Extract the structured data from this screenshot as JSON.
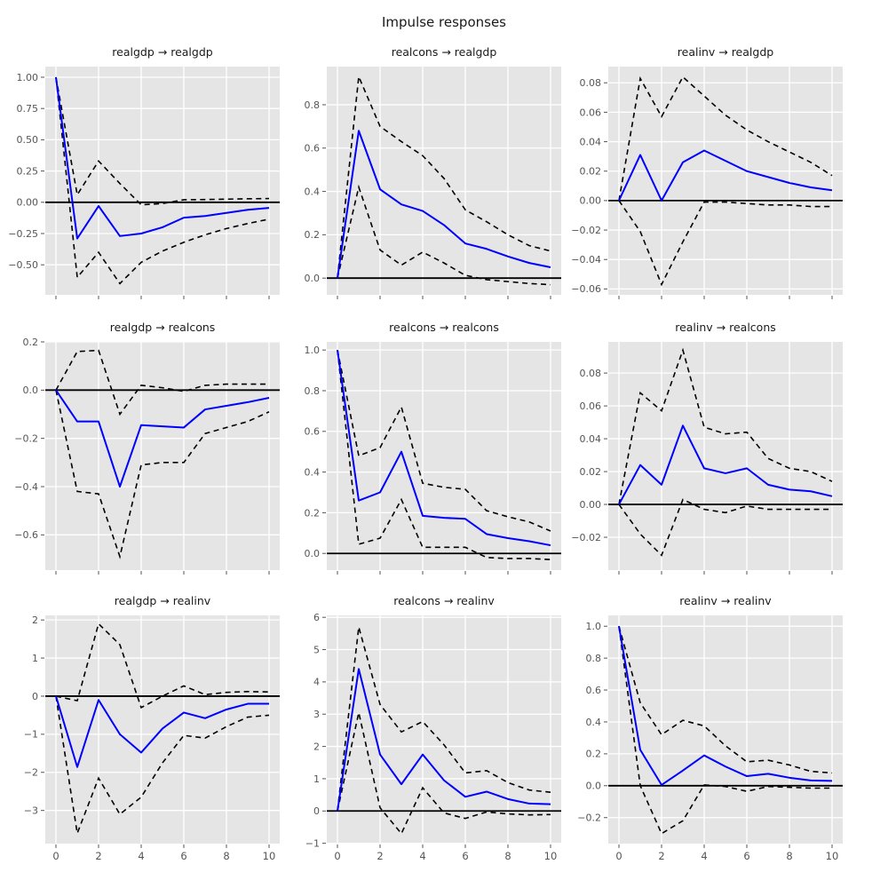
{
  "figure": {
    "title": "Impulse responses"
  },
  "chart_data": {
    "type": "line",
    "title": "Impulse responses",
    "x": [
      0,
      1,
      2,
      3,
      4,
      5,
      6,
      7,
      8,
      9,
      10
    ],
    "xlim": [
      -0.5,
      10.5
    ],
    "x_ticks": [
      0,
      2,
      4,
      6,
      8,
      10
    ],
    "x_tick_labels": [
      "0",
      "2",
      "4",
      "6",
      "8",
      "10"
    ],
    "grid": true,
    "legend_position": "none",
    "series_styles": {
      "irf": "solid blue line",
      "upper_ci": "dashed black line",
      "lower_ci": "dashed black line",
      "zero": "solid black horizontal line at 0"
    },
    "colors": {
      "irf_line": "#0000ff",
      "ci_line": "#000000",
      "zero_line": "#000000",
      "panel_background": "#e5e5e5",
      "grid_line": "#ffffff",
      "tick_label": "#555555",
      "title_text": "#1a1a1a"
    },
    "panels": [
      {
        "title": "realgdp → realgdp",
        "row": 0,
        "col": 0,
        "ylim": [
          -0.74,
          1.085
        ],
        "y_ticks": [
          1.0,
          0.75,
          0.5,
          0.25,
          0.0,
          -0.25,
          -0.5
        ],
        "y_tick_labels": [
          "1.00",
          "0.75",
          "0.50",
          "0.25",
          "0.00",
          "−0.25",
          "−0.50"
        ],
        "series": {
          "irf": [
            1.0,
            -0.29,
            -0.03,
            -0.27,
            -0.25,
            -0.2,
            -0.123,
            -0.11,
            -0.085,
            -0.06,
            -0.045
          ],
          "upper_ci": [
            1.0,
            0.06,
            0.33,
            0.15,
            -0.02,
            -0.01,
            0.02,
            0.022,
            0.025,
            0.028,
            0.03
          ],
          "lower_ci": [
            1.0,
            -0.6,
            -0.4,
            -0.65,
            -0.48,
            -0.39,
            -0.32,
            -0.26,
            -0.21,
            -0.17,
            -0.135
          ]
        }
      },
      {
        "title": "realcons → realgdp",
        "row": 0,
        "col": 1,
        "ylim": [
          -0.077,
          0.976
        ],
        "y_ticks": [
          0.8,
          0.6,
          0.4,
          0.2,
          0.0
        ],
        "y_tick_labels": [
          "0.8",
          "0.6",
          "0.4",
          "0.2",
          "0.0"
        ],
        "series": {
          "irf": [
            0.0,
            0.68,
            0.41,
            0.34,
            0.31,
            0.245,
            0.16,
            0.135,
            0.1,
            0.07,
            0.05
          ],
          "upper_ci": [
            0.0,
            0.93,
            0.7,
            0.63,
            0.565,
            0.46,
            0.315,
            0.26,
            0.2,
            0.15,
            0.125
          ],
          "lower_ci": [
            0.0,
            0.42,
            0.13,
            0.06,
            0.12,
            0.07,
            0.013,
            -0.007,
            -0.016,
            -0.025,
            -0.03
          ]
        }
      },
      {
        "title": "realinv → realgdp",
        "row": 0,
        "col": 2,
        "ylim": [
          -0.064,
          0.091
        ],
        "y_ticks": [
          0.08,
          0.06,
          0.04,
          0.02,
          0.0,
          -0.02,
          -0.04,
          -0.06
        ],
        "y_tick_labels": [
          "0.08",
          "0.06",
          "0.04",
          "0.02",
          "0.00",
          "−0.02",
          "−0.04",
          "−0.06"
        ],
        "series": {
          "irf": [
            0.0,
            0.031,
            0.0,
            0.026,
            0.034,
            0.027,
            0.02,
            0.016,
            0.012,
            0.009,
            0.007
          ],
          "upper_ci": [
            0.0,
            0.083,
            0.057,
            0.084,
            0.071,
            0.058,
            0.048,
            0.04,
            0.033,
            0.026,
            0.017
          ],
          "lower_ci": [
            0.0,
            -0.021,
            -0.057,
            -0.028,
            -0.001,
            -0.001,
            -0.002,
            -0.003,
            -0.003,
            -0.004,
            -0.004
          ]
        }
      },
      {
        "title": "realgdp → realcons",
        "row": 1,
        "col": 0,
        "ylim": [
          -0.746,
          0.2
        ],
        "y_ticks": [
          0.2,
          0.0,
          -0.2,
          -0.4,
          -0.6
        ],
        "y_tick_labels": [
          "0.2",
          "0.0",
          "−0.2",
          "−0.4",
          "−0.6"
        ],
        "series": {
          "irf": [
            0.0,
            -0.13,
            -0.13,
            -0.4,
            -0.145,
            -0.15,
            -0.155,
            -0.08,
            -0.065,
            -0.05,
            -0.032
          ],
          "upper_ci": [
            0.0,
            0.16,
            0.165,
            -0.1,
            0.02,
            0.01,
            -0.005,
            0.02,
            0.025,
            0.025,
            0.025
          ],
          "lower_ci": [
            0.0,
            -0.42,
            -0.43,
            -0.69,
            -0.31,
            -0.3,
            -0.3,
            -0.18,
            -0.155,
            -0.13,
            -0.09
          ]
        }
      },
      {
        "title": "realcons → realcons",
        "row": 1,
        "col": 1,
        "ylim": [
          -0.082,
          1.04
        ],
        "y_ticks": [
          1.0,
          0.8,
          0.6,
          0.4,
          0.2,
          0.0
        ],
        "y_tick_labels": [
          "1.0",
          "0.8",
          "0.6",
          "0.4",
          "0.2",
          "0.0"
        ],
        "series": {
          "irf": [
            1.0,
            0.26,
            0.3,
            0.5,
            0.185,
            0.175,
            0.17,
            0.095,
            0.075,
            0.06,
            0.04
          ],
          "upper_ci": [
            1.0,
            0.48,
            0.52,
            0.72,
            0.345,
            0.325,
            0.315,
            0.21,
            0.18,
            0.155,
            0.11
          ],
          "lower_ci": [
            1.0,
            0.045,
            0.075,
            0.265,
            0.03,
            0.03,
            0.03,
            -0.02,
            -0.025,
            -0.025,
            -0.03
          ]
        }
      },
      {
        "title": "realinv → realcons",
        "row": 1,
        "col": 2,
        "ylim": [
          -0.04,
          0.099
        ],
        "y_ticks": [
          0.08,
          0.06,
          0.04,
          0.02,
          0.0,
          -0.02
        ],
        "y_tick_labels": [
          "0.08",
          "0.06",
          "0.04",
          "0.02",
          "0.00",
          "−0.02"
        ],
        "series": {
          "irf": [
            0.0,
            0.024,
            0.012,
            0.048,
            0.022,
            0.019,
            0.022,
            0.012,
            0.009,
            0.008,
            0.005
          ],
          "upper_ci": [
            0.0,
            0.068,
            0.057,
            0.094,
            0.047,
            0.043,
            0.044,
            0.028,
            0.022,
            0.02,
            0.014
          ],
          "lower_ci": [
            0.0,
            -0.018,
            -0.031,
            0.003,
            -0.003,
            -0.005,
            -0.001,
            -0.003,
            -0.003,
            -0.003,
            -0.003
          ]
        }
      },
      {
        "title": "realgdp → realinv",
        "row": 2,
        "col": 0,
        "ylim": [
          -3.87,
          2.12
        ],
        "y_ticks": [
          2,
          1,
          0,
          -1,
          -2,
          -3
        ],
        "y_tick_labels": [
          "2",
          "1",
          "0",
          "−1",
          "−2",
          "−3"
        ],
        "series": {
          "irf": [
            0.0,
            -1.86,
            -0.1,
            -1.0,
            -1.48,
            -0.85,
            -0.43,
            -0.58,
            -0.35,
            -0.2,
            -0.2
          ],
          "upper_ci": [
            0.0,
            -0.12,
            1.9,
            1.35,
            -0.3,
            0.0,
            0.27,
            0.04,
            0.1,
            0.12,
            0.11
          ],
          "lower_ci": [
            0.0,
            -3.6,
            -2.15,
            -3.1,
            -2.65,
            -1.75,
            -1.03,
            -1.1,
            -0.8,
            -0.55,
            -0.5
          ]
        }
      },
      {
        "title": "realcons → realinv",
        "row": 2,
        "col": 1,
        "ylim": [
          -1.01,
          6.06
        ],
        "y_ticks": [
          6,
          5,
          4,
          3,
          2,
          1,
          0,
          -1
        ],
        "y_tick_labels": [
          "6",
          "5",
          "4",
          "3",
          "2",
          "1",
          "0",
          "−1"
        ],
        "series": {
          "irf": [
            0.0,
            4.4,
            1.75,
            0.83,
            1.75,
            0.95,
            0.44,
            0.6,
            0.37,
            0.23,
            0.21
          ],
          "upper_ci": [
            0.0,
            5.7,
            3.3,
            2.45,
            2.77,
            2.05,
            1.18,
            1.25,
            0.88,
            0.65,
            0.58
          ],
          "lower_ci": [
            0.0,
            3.05,
            0.1,
            -0.7,
            0.72,
            -0.06,
            -0.23,
            -0.03,
            -0.09,
            -0.12,
            -0.11
          ]
        }
      },
      {
        "title": "realinv → realinv",
        "row": 2,
        "col": 2,
        "ylim": [
          -0.363,
          1.068
        ],
        "y_ticks": [
          1.0,
          0.8,
          0.6,
          0.4,
          0.2,
          0.0,
          -0.2
        ],
        "y_tick_labels": [
          "1.0",
          "0.8",
          "0.6",
          "0.4",
          "0.2",
          "0.0",
          "−0.2"
        ],
        "series": {
          "irf": [
            1.0,
            0.225,
            0.005,
            0.095,
            0.19,
            0.12,
            0.06,
            0.075,
            0.05,
            0.033,
            0.03
          ],
          "upper_ci": [
            1.0,
            0.52,
            0.32,
            0.41,
            0.375,
            0.25,
            0.15,
            0.16,
            0.13,
            0.09,
            0.08
          ],
          "lower_ci": [
            1.0,
            0.0,
            -0.3,
            -0.22,
            0.005,
            -0.005,
            -0.035,
            -0.005,
            -0.01,
            -0.015,
            -0.015
          ]
        }
      }
    ]
  }
}
